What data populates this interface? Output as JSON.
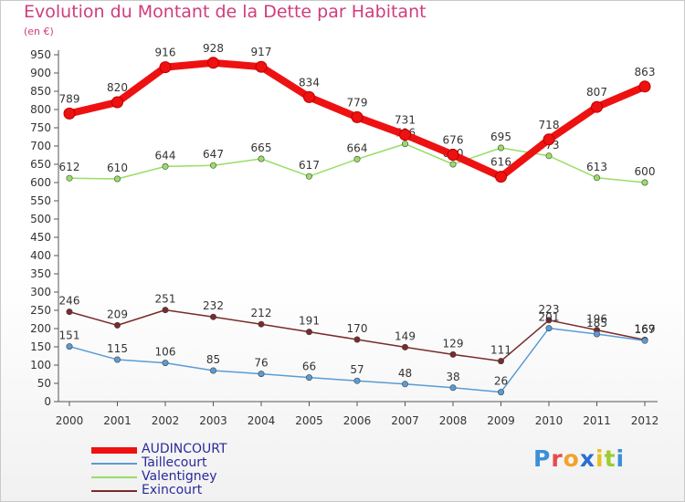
{
  "chart_data": {
    "type": "line",
    "title": "Evolution du Montant de la Dette par Habitant",
    "subtitle": "(en €)",
    "x": [
      "2000",
      "2001",
      "2002",
      "2003",
      "2004",
      "2005",
      "2006",
      "2007",
      "2008",
      "2009",
      "2010",
      "2011",
      "2012"
    ],
    "y_ticks": [
      0,
      50,
      100,
      150,
      200,
      250,
      300,
      350,
      400,
      450,
      500,
      550,
      600,
      650,
      700,
      750,
      800,
      850,
      900,
      950
    ],
    "ylim": [
      0,
      950
    ],
    "grid": false,
    "legend_position": "bottom-left",
    "series": [
      {
        "name": "AUDINCOURT",
        "color": "#ee1111",
        "values": [
          789,
          820,
          916,
          928,
          917,
          834,
          779,
          731,
          676,
          616,
          718,
          807,
          863
        ]
      },
      {
        "name": "Taillecourt",
        "color": "#5b9bd5",
        "values": [
          151,
          115,
          106,
          85,
          76,
          66,
          57,
          48,
          38,
          26,
          201,
          185,
          167
        ]
      },
      {
        "name": "Valentigney",
        "color": "#99dd66",
        "values": [
          612,
          610,
          644,
          647,
          665,
          617,
          664,
          706,
          650,
          695,
          673,
          613,
          600
        ]
      },
      {
        "name": "Exincourt",
        "color": "#7a2a2a",
        "values": [
          246,
          209,
          251,
          232,
          212,
          191,
          170,
          149,
          129,
          111,
          223,
          196,
          169
        ]
      }
    ]
  },
  "logo": {
    "text": "Proxiti"
  }
}
